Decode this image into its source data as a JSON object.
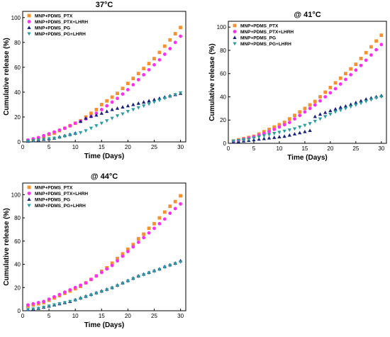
{
  "chart_data": [
    {
      "type": "scatter",
      "title": "37°C",
      "xlabel": "Time (Days)",
      "ylabel": "Cumulative release (%)",
      "xlim": [
        0,
        31
      ],
      "ylim": [
        0,
        105
      ],
      "xticks": [
        "0",
        "5",
        "10",
        "15",
        "20",
        "25",
        "30"
      ],
      "yticks": [
        "0",
        "20",
        "40",
        "60",
        "80",
        "100"
      ],
      "legend": "top-left",
      "x": [
        1,
        2,
        3,
        4,
        5,
        6,
        7,
        8,
        9,
        10,
        11,
        12,
        13,
        14,
        15,
        16,
        17,
        18,
        19,
        20,
        21,
        22,
        23,
        24,
        25,
        26,
        27,
        28,
        29,
        30
      ],
      "series": [
        {
          "name": "MNP+PDMS_PTX",
          "color": "#f5922f",
          "marker": "square",
          "values": [
            1,
            2,
            3,
            4,
            6,
            7,
            9,
            11,
            13,
            15,
            17,
            20,
            23,
            26,
            30,
            33,
            36,
            39,
            43,
            47,
            51,
            55,
            59,
            63,
            67,
            72,
            77,
            82,
            87,
            92
          ]
        },
        {
          "name": "MNP+PDMS_PTX+LHRH",
          "color": "#ff2ef2",
          "marker": "circle",
          "values": [
            1.5,
            2.5,
            3.5,
            5,
            6.5,
            8,
            9.5,
            11,
            13,
            15,
            16.5,
            18.5,
            20.5,
            23,
            26,
            29,
            32,
            35,
            38.5,
            42,
            46,
            50,
            54,
            58,
            62,
            66,
            70.5,
            75,
            80,
            85
          ]
        },
        {
          "name": "MNP+PDMS_PG",
          "color": "#1a237e",
          "marker": "triangle-up",
          "values": [
            0.5,
            1,
            1.5,
            2,
            2.5,
            3,
            4,
            5,
            6,
            7,
            16.5,
            19,
            20.5,
            21.5,
            23,
            24.5,
            26,
            27,
            28,
            29,
            30,
            31,
            32,
            33,
            34,
            35,
            36,
            37,
            38,
            39
          ]
        },
        {
          "name": "MNP+PDMS_PG+LHRH",
          "color": "#2a9d9f",
          "marker": "triangle-down",
          "values": [
            0.5,
            1,
            1.5,
            2,
            2.5,
            3,
            3.5,
            4.5,
            5.5,
            6.5,
            7.5,
            9,
            11,
            13,
            15,
            17,
            19,
            21,
            22.5,
            24.5,
            26,
            27.5,
            29,
            30.5,
            32,
            33.5,
            35,
            36.5,
            38,
            39.5
          ]
        }
      ]
    },
    {
      "type": "scatter",
      "title": "@ 41°C",
      "xlabel": "Time (Days)",
      "ylabel": "Cumulative release (%)",
      "xlim": [
        0,
        31
      ],
      "ylim": [
        0,
        105
      ],
      "xticks": [
        "0",
        "5",
        "10",
        "15",
        "20",
        "25",
        "30"
      ],
      "yticks": [
        "0",
        "20",
        "40",
        "60",
        "80",
        "100"
      ],
      "legend": "top-left",
      "x": [
        1,
        2,
        3,
        4,
        5,
        6,
        7,
        8,
        9,
        10,
        11,
        12,
        13,
        14,
        15,
        16,
        17,
        18,
        19,
        20,
        21,
        22,
        23,
        24,
        25,
        26,
        27,
        28,
        29,
        30
      ],
      "series": [
        {
          "name": "MNP+PDMS_PTX",
          "color": "#f5922f",
          "marker": "square",
          "values": [
            2,
            3,
            4,
            5,
            6,
            8,
            10,
            12,
            14,
            16,
            18,
            21,
            24,
            27,
            30,
            33,
            36,
            40,
            44,
            48,
            52,
            56,
            60,
            64,
            68,
            73,
            78,
            83,
            88,
            93
          ]
        },
        {
          "name": "MNP+PDMS_PTX+LHRH",
          "color": "#ff2ef2",
          "marker": "circle",
          "values": [
            1.5,
            2.5,
            3.5,
            4.5,
            5.5,
            7,
            8.5,
            10,
            12,
            14,
            16,
            18,
            21,
            24,
            27,
            30,
            33,
            36.5,
            40,
            43.5,
            47,
            51,
            55,
            59,
            63,
            67,
            71.5,
            76,
            80.5,
            85
          ]
        },
        {
          "name": "MNP+PDMS_PG",
          "color": "#1a237e",
          "marker": "triangle-up",
          "values": [
            1,
            1.5,
            2,
            2.5,
            3,
            3.5,
            4,
            4.5,
            5,
            5.5,
            6,
            7,
            8,
            9,
            10,
            11,
            23,
            25,
            26.5,
            28,
            29.5,
            31,
            32,
            33.5,
            35,
            36.5,
            38,
            39,
            40,
            41
          ]
        },
        {
          "name": "MNP+PDMS_PG+LHRH",
          "color": "#2a9d9f",
          "marker": "triangle-down",
          "values": [
            2,
            2.5,
            3,
            3.5,
            4.5,
            5.5,
            6.5,
            7.5,
            8.5,
            9.5,
            10.5,
            11.5,
            12.5,
            14,
            15.5,
            17,
            19,
            21,
            23,
            25,
            27,
            28.5,
            30,
            31.5,
            33,
            34.5,
            36,
            37.5,
            39,
            40
          ]
        }
      ]
    },
    {
      "type": "scatter",
      "title": "@ 44°C",
      "xlabel": "Time (Days)",
      "ylabel": "Cumulative release (%)",
      "xlim": [
        0,
        31
      ],
      "ylim": [
        0,
        110
      ],
      "xticks": [
        "0",
        "5",
        "10",
        "15",
        "20",
        "25",
        "30"
      ],
      "yticks": [
        "0",
        "20",
        "40",
        "60",
        "80",
        "100"
      ],
      "legend": "top-left",
      "x": [
        1,
        2,
        3,
        4,
        5,
        6,
        7,
        8,
        9,
        10,
        11,
        12,
        13,
        14,
        15,
        16,
        17,
        18,
        19,
        20,
        21,
        22,
        23,
        24,
        25,
        26,
        27,
        28,
        29,
        30
      ],
      "series": [
        {
          "name": "MNP+PDMS_PTX",
          "color": "#f5922f",
          "marker": "square",
          "values": [
            4,
            5,
            6,
            7,
            9,
            11,
            13,
            15,
            17,
            19,
            21,
            24,
            27,
            30,
            34,
            37,
            41,
            45,
            49,
            53,
            57,
            62,
            66,
            71,
            75,
            80,
            85,
            90,
            94,
            99
          ]
        },
        {
          "name": "MNP+PDMS_PTX+LHRH",
          "color": "#ff2ef2",
          "marker": "circle",
          "values": [
            5,
            6,
            7,
            8,
            10,
            12,
            14,
            16,
            18,
            20,
            22,
            24,
            27,
            30,
            33,
            36,
            39,
            43,
            47,
            51,
            55,
            59,
            63,
            67,
            71,
            75,
            79,
            84,
            88,
            92
          ]
        },
        {
          "name": "MNP+PDMS_PG",
          "color": "#1a237e",
          "marker": "triangle-up",
          "values": [
            1,
            1.5,
            2,
            3,
            4,
            5,
            6,
            7,
            8,
            9.5,
            11,
            12.5,
            14,
            15.5,
            17,
            18.5,
            20,
            22,
            24,
            26,
            28,
            30,
            31.5,
            33,
            34.5,
            36,
            38,
            39.5,
            41,
            43
          ]
        },
        {
          "name": "MNP+PDMS_PG+LHRH",
          "color": "#2a9d9f",
          "marker": "triangle-down",
          "values": [
            1,
            1.5,
            2,
            3,
            4,
            5,
            6,
            7,
            8,
            9,
            10.5,
            12,
            13.5,
            15,
            16.5,
            18,
            19.5,
            21.5,
            23.5,
            25.5,
            27.5,
            29.5,
            31,
            32.5,
            34,
            35.5,
            37.5,
            39,
            40.5,
            42
          ]
        }
      ]
    }
  ]
}
